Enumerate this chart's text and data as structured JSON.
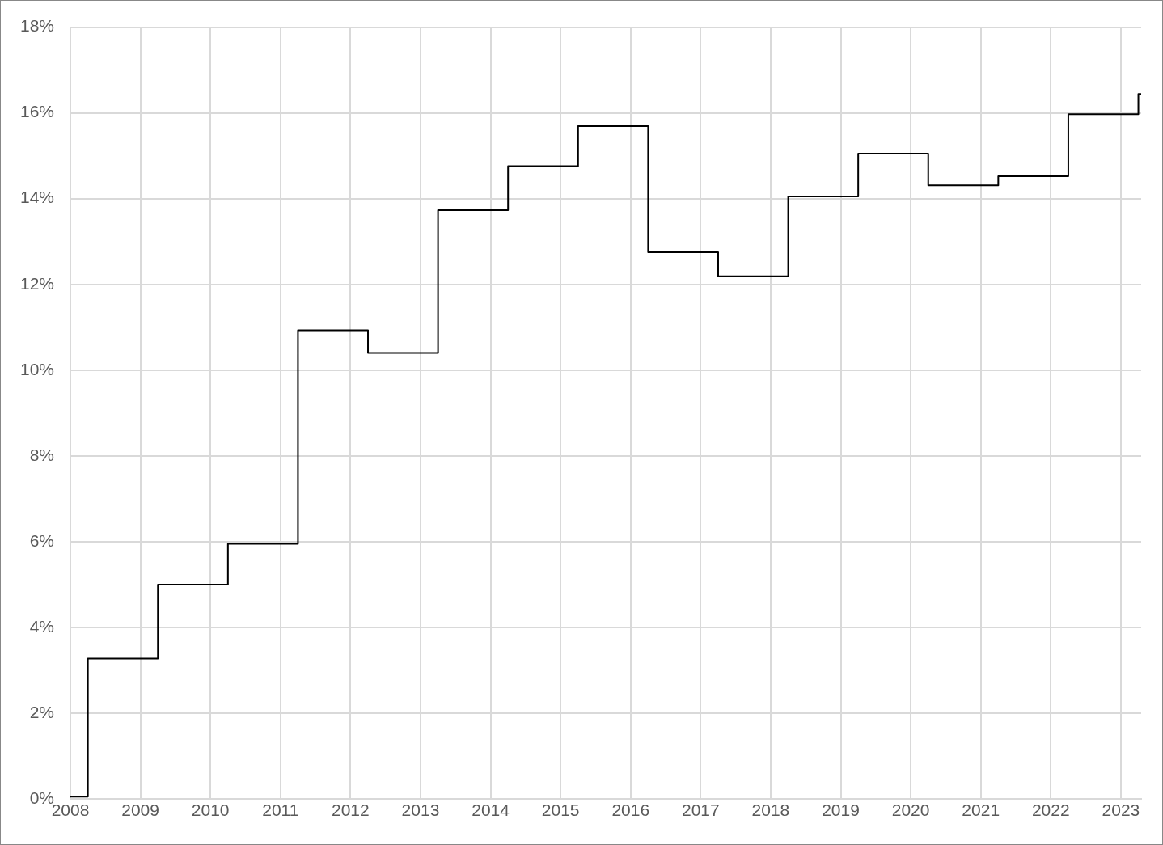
{
  "chart_data": {
    "type": "step",
    "color": "#000000",
    "x": [
      2008,
      2008.25,
      2009.25,
      2010.25,
      2011.25,
      2012.25,
      2013.25,
      2014.25,
      2015.25,
      2016.25,
      2017.25,
      2018.25,
      2019.25,
      2020.25,
      2021.25,
      2022.25,
      2023.25,
      2023.29
    ],
    "values": [
      0.05,
      3.27,
      5.0,
      5.95,
      10.93,
      10.4,
      13.73,
      14.76,
      15.69,
      12.75,
      12.19,
      14.05,
      15.05,
      14.31,
      14.52,
      15.97,
      16.44,
      16.44
    ],
    "xlim": [
      2008,
      2023.29
    ],
    "xticks": [
      2008,
      2009,
      2010,
      2011,
      2012,
      2013,
      2014,
      2015,
      2016,
      2017,
      2018,
      2019,
      2020,
      2021,
      2022,
      2023
    ],
    "ylim": [
      0,
      18
    ],
    "yticks": [
      {
        "value": 0,
        "label": "0%"
      },
      {
        "value": 2,
        "label": "2%"
      },
      {
        "value": 4,
        "label": "4%"
      },
      {
        "value": 6,
        "label": "6%"
      },
      {
        "value": 8,
        "label": "8%"
      },
      {
        "value": 10,
        "label": "10%"
      },
      {
        "value": 12,
        "label": "12%"
      },
      {
        "value": 14,
        "label": "14%"
      },
      {
        "value": 16,
        "label": "16%"
      },
      {
        "value": 18,
        "label": "18%"
      }
    ],
    "grid": true,
    "legend": false
  }
}
